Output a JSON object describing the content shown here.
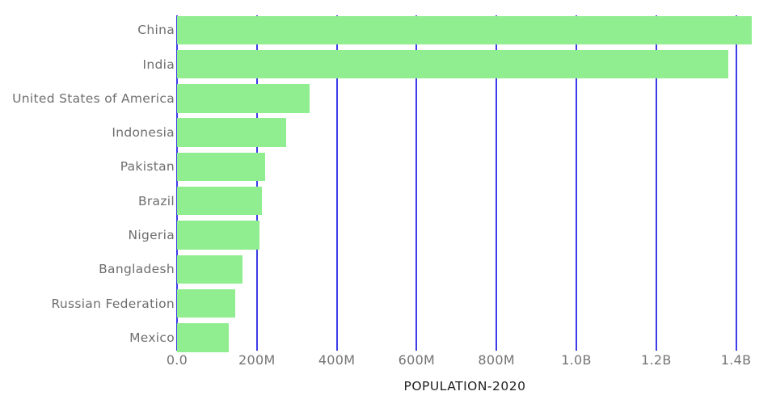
{
  "chart_data": {
    "type": "bar",
    "orientation": "horizontal",
    "title": "POPULATION-2020",
    "title_position": "bottom-center",
    "xlabel": "POPULATION-2020",
    "ylabel": "",
    "categories": [
      "China",
      "India",
      "United States of America",
      "Indonesia",
      "Pakistan",
      "Brazil",
      "Nigeria",
      "Bangladesh",
      "Russian Federation",
      "Mexico"
    ],
    "values": [
      1439323776,
      1380004385,
      331002651,
      273523615,
      220892340,
      212559417,
      206139589,
      164689383,
      145934462,
      128932753
    ],
    "x_axis": {
      "min": 0,
      "max_shown_tick": 1400000000,
      "tick_step": 200000000,
      "ticks": [
        0,
        200000000,
        400000000,
        600000000,
        800000000,
        1000000000,
        1200000000,
        1400000000
      ],
      "tick_labels": [
        "0.0",
        "200M",
        "400M",
        "600M",
        "800M",
        "1.0B",
        "1.2B",
        "1.4B"
      ]
    },
    "grid": "vertical-only",
    "legend": false,
    "colors": {
      "bar": "#90EE90",
      "gridline": "#3c3ce8",
      "category_label": "#6e6e6e",
      "tick_label": "#757575",
      "title": "#1d1d1d",
      "background": "#ffffff"
    }
  }
}
